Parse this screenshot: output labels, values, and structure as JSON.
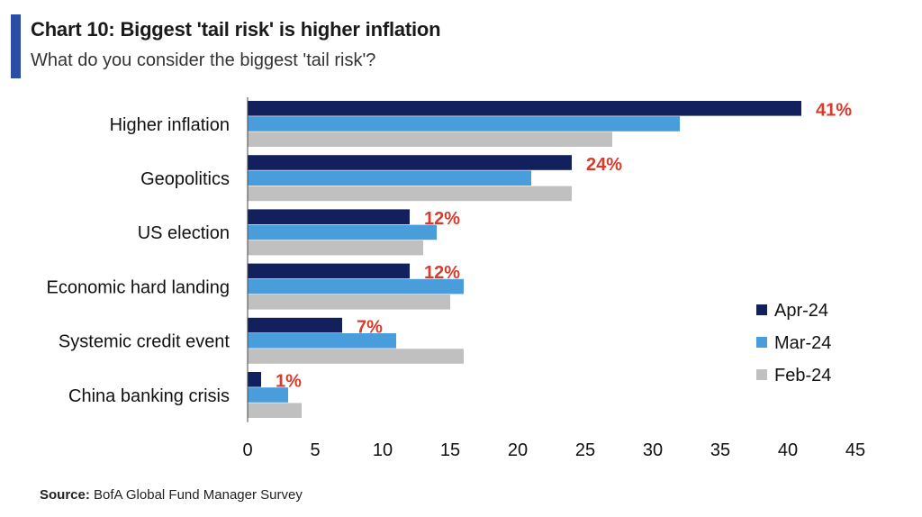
{
  "header": {
    "title": "Chart 10: Biggest 'tail risk' is higher inflation",
    "subtitle": "What do you consider the biggest 'tail risk'?",
    "accent_color": "#2a4ea6"
  },
  "source": {
    "label": "Source:",
    "text": "BofA Global Fund Manager Survey"
  },
  "chart_data": {
    "type": "bar",
    "orientation": "horizontal",
    "categories": [
      "Higher inflation",
      "Geopolitics",
      "US election",
      "Economic hard landing",
      "Systemic credit event",
      "China banking crisis"
    ],
    "series": [
      {
        "name": "Apr-24",
        "color": "#13205e",
        "values": [
          41,
          24,
          12,
          12,
          7,
          1
        ]
      },
      {
        "name": "Mar-24",
        "color": "#4a9ddb",
        "values": [
          32,
          21,
          14,
          16,
          11,
          3
        ]
      },
      {
        "name": "Feb-24",
        "color": "#c0c0c0",
        "values": [
          27,
          24,
          13,
          15,
          16,
          4
        ]
      }
    ],
    "data_labels": [
      "41%",
      "24%",
      "12%",
      "12%",
      "7%",
      "1%"
    ],
    "data_label_color": "#d93b2b",
    "xlim": [
      0,
      45
    ],
    "xticks": [
      0,
      5,
      10,
      15,
      20,
      25,
      30,
      35,
      40,
      45
    ],
    "grid": false,
    "legend_position": "right"
  }
}
